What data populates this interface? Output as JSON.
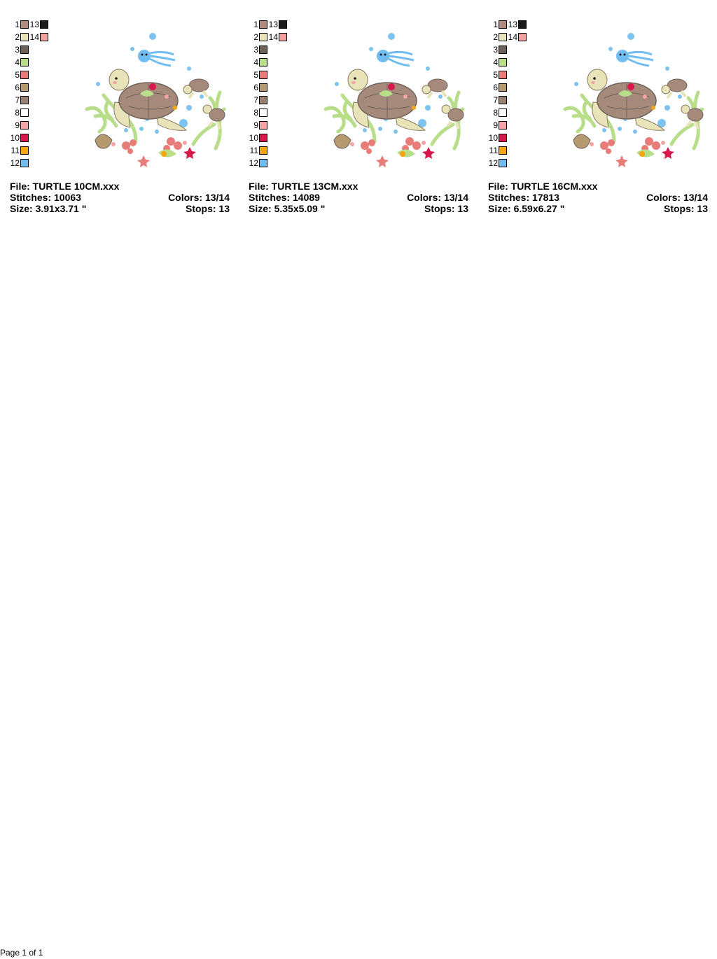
{
  "legend": {
    "col1": [
      {
        "num": "1",
        "color": "#b08a7c"
      },
      {
        "num": "2",
        "color": "#e8e3b8"
      },
      {
        "num": "3",
        "color": "#6e6258"
      },
      {
        "num": "4",
        "color": "#b8de8a"
      },
      {
        "num": "5",
        "color": "#e87c78"
      },
      {
        "num": "6",
        "color": "#b59a70"
      },
      {
        "num": "7",
        "color": "#998070"
      },
      {
        "num": "8",
        "color": "#ffffff"
      },
      {
        "num": "9",
        "color": "#f4a3a6"
      },
      {
        "num": "10",
        "color": "#d8174a"
      },
      {
        "num": "11",
        "color": "#f6a410"
      },
      {
        "num": "12",
        "color": "#6fbdf1"
      }
    ],
    "col2": [
      {
        "num": "13",
        "color": "#1a1a1a"
      },
      {
        "num": "14",
        "color": "#f2a0a0"
      }
    ]
  },
  "designs": [
    {
      "file_label": "File: TURTLE 10CM.xxx",
      "stitches_label": "Stitches: 10063",
      "colors_label": "Colors: 13/14",
      "size_label": "Size: 3.91x3.71 \"",
      "stops_label": "Stops: 13"
    },
    {
      "file_label": "File: TURTLE 13CM.xxx",
      "stitches_label": "Stitches: 14089",
      "colors_label": "Colors: 13/14",
      "size_label": "Size: 5.35x5.09 \"",
      "stops_label": "Stops: 13"
    },
    {
      "file_label": "File: TURTLE 16CM.xxx",
      "stitches_label": "Stitches: 17813",
      "colors_label": "Colors: 13/14",
      "size_label": "Size: 6.59x6.27 \"",
      "stops_label": "Stops: 13"
    }
  ],
  "footer": {
    "page_label": "Page 1 of 1"
  }
}
